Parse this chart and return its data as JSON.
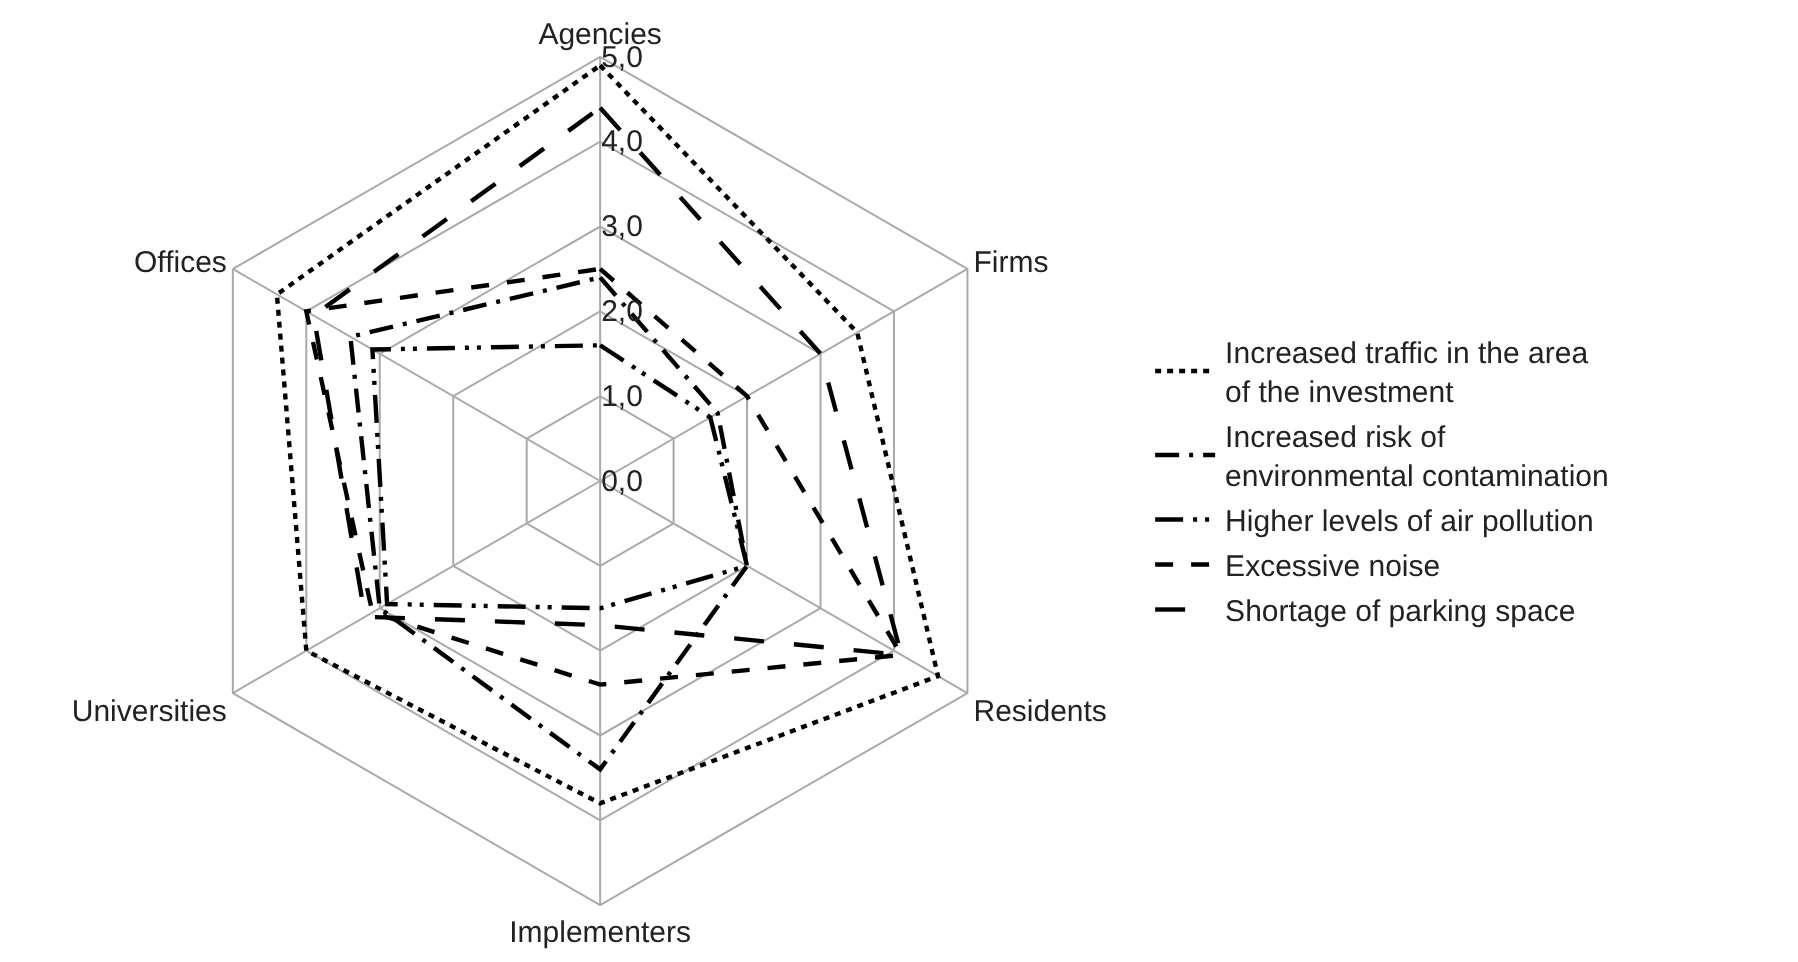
{
  "chart_data": {
    "type": "radar",
    "categories": [
      "Agencies",
      "Firms",
      "Residents",
      "Implementers",
      "Universities",
      "Offices"
    ],
    "ylim": [
      0,
      5
    ],
    "yticks": [
      {
        "value": 0,
        "label": "0,0"
      },
      {
        "value": 1,
        "label": "1,0"
      },
      {
        "value": 2,
        "label": "2,0"
      },
      {
        "value": 3,
        "label": "3,0"
      },
      {
        "value": 4,
        "label": "4,0"
      },
      {
        "value": 5,
        "label": "5,0"
      }
    ],
    "grid": true,
    "legend": "right",
    "series": [
      {
        "name": "Increased traffic in the area of the investment",
        "color": "#000000",
        "line_style": "dotted",
        "values": [
          4.9,
          3.5,
          4.6,
          3.8,
          4.0,
          4.4
        ]
      },
      {
        "name": "Increased risk of environmental contamination",
        "color": "#000000",
        "line_style": "dashdot",
        "values": [
          2.4,
          1.6,
          2.0,
          3.4,
          3.0,
          3.4
        ]
      },
      {
        "name": "Higher levels of air pollution",
        "color": "#000000",
        "line_style": "longdashdotdot",
        "values": [
          1.6,
          1.5,
          2.0,
          1.5,
          2.9,
          3.1
        ]
      },
      {
        "name": "Excessive noise",
        "color": "#000000",
        "line_style": "dashed",
        "values": [
          2.5,
          2.0,
          4.1,
          2.4,
          3.1,
          4.0
        ]
      },
      {
        "name": "Shortage of parking space",
        "color": "#000000",
        "line_style": "longdash",
        "values": [
          4.4,
          3.0,
          4.1,
          1.7,
          3.2,
          3.9
        ]
      }
    ]
  }
}
